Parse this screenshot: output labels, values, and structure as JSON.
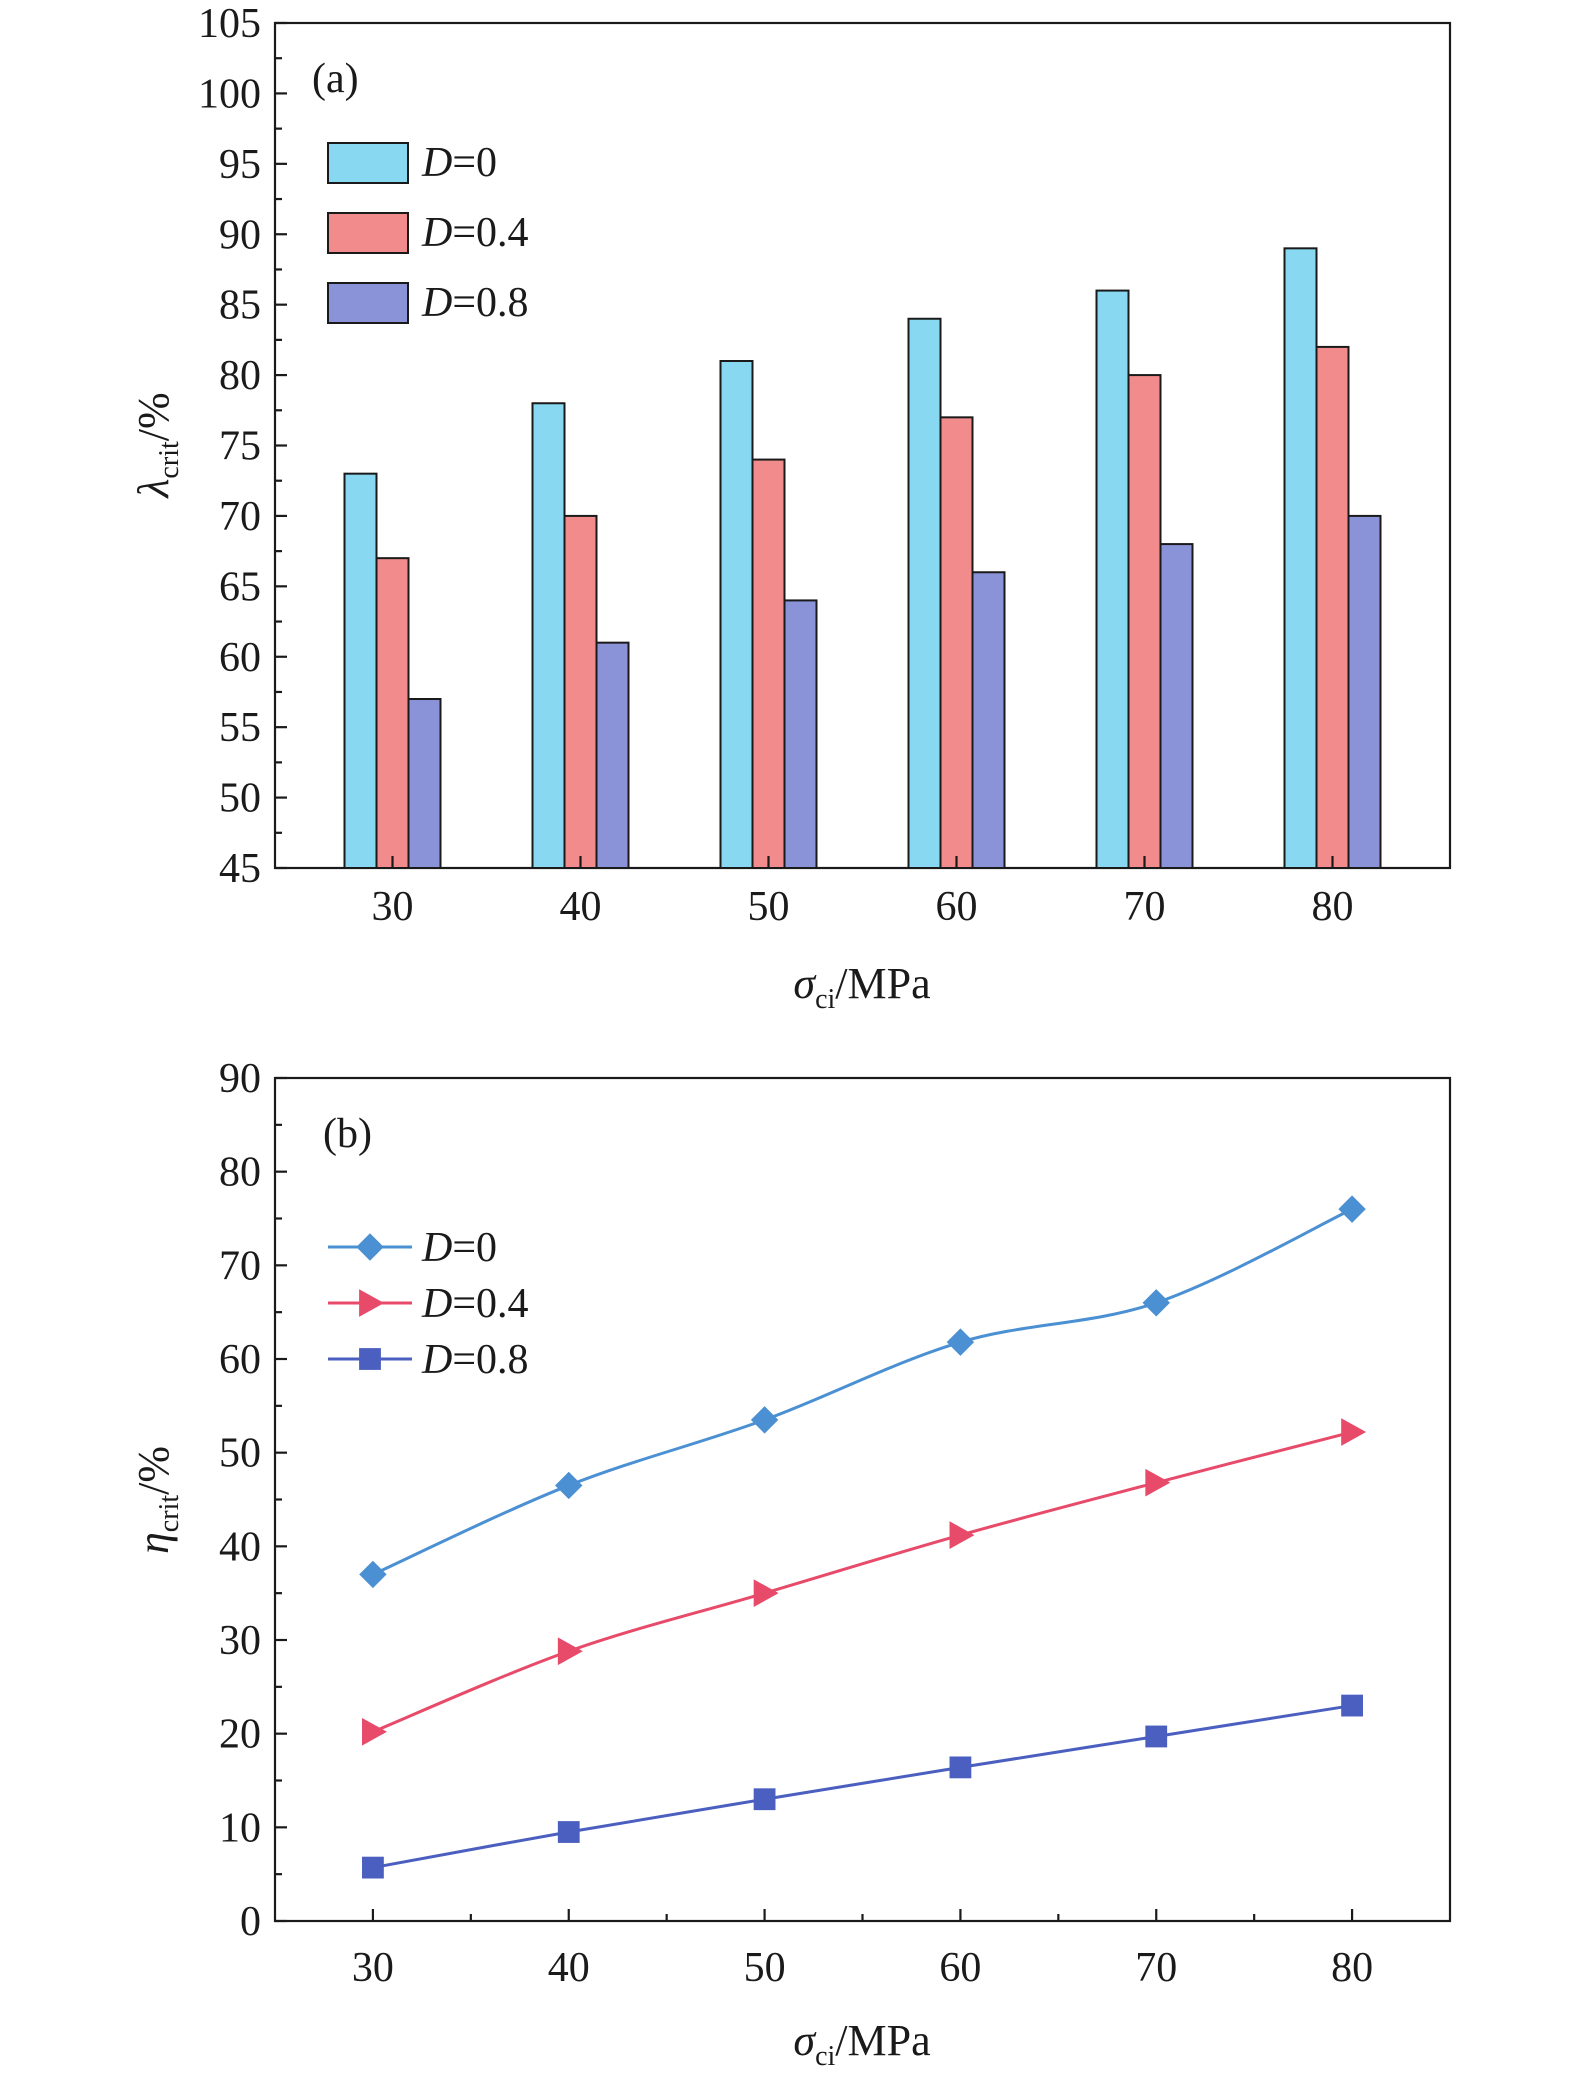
{
  "chart_data": [
    {
      "type": "bar",
      "panel_label": "(a)",
      "categories": [
        "30",
        "40",
        "50",
        "60",
        "70",
        "80"
      ],
      "series": [
        {
          "name_prefix": "D",
          "name_suffix": "=0",
          "values": [
            73,
            78,
            81,
            84,
            86,
            89
          ],
          "color": "#87d8f0"
        },
        {
          "name_prefix": "D",
          "name_suffix": "=0.4",
          "values": [
            67,
            70,
            74,
            77,
            80,
            82
          ],
          "color": "#f28b8b"
        },
        {
          "name_prefix": "D",
          "name_suffix": "=0.8",
          "values": [
            57,
            61,
            64,
            66,
            68,
            70
          ],
          "color": "#8a93d8"
        }
      ],
      "yticks": [
        "45",
        "50",
        "55",
        "60",
        "65",
        "70",
        "75",
        "80",
        "85",
        "90",
        "95",
        "100",
        "105"
      ],
      "ylim": [
        45,
        105
      ],
      "xlabel": {
        "symbol": "σ",
        "sub": "ci",
        "rest": "/MPa"
      },
      "ylabel": {
        "symbol": "λ",
        "sub": "crit",
        "rest": "/%"
      },
      "legend_position": "top-left",
      "grid": false
    },
    {
      "type": "line",
      "panel_label": "(b)",
      "x": [
        30,
        40,
        50,
        60,
        70,
        80
      ],
      "xticks": [
        "30",
        "40",
        "50",
        "60",
        "70",
        "80"
      ],
      "series": [
        {
          "name_prefix": "D",
          "name_suffix": "=0",
          "values": [
            37,
            46.5,
            53.5,
            61.8,
            66,
            76
          ],
          "color": "#4a90d2",
          "marker": "diamond"
        },
        {
          "name_prefix": "D",
          "name_suffix": "=0.4",
          "values": [
            20.2,
            28.8,
            35,
            41.2,
            46.8,
            52.2
          ],
          "color": "#e84a6a",
          "marker": "triangle-right"
        },
        {
          "name_prefix": "D",
          "name_suffix": "=0.8",
          "values": [
            5.7,
            9.5,
            13,
            16.4,
            19.7,
            23
          ],
          "color": "#4a5fbf",
          "marker": "square"
        }
      ],
      "yticks": [
        "0",
        "10",
        "20",
        "30",
        "40",
        "50",
        "60",
        "70",
        "80",
        "90"
      ],
      "ylim": [
        0,
        90
      ],
      "xlim": [
        25,
        85
      ],
      "xlabel": {
        "symbol": "σ",
        "sub": "ci",
        "rest": "/MPa"
      },
      "ylabel": {
        "symbol": "η",
        "sub": "crit",
        "rest": "/%"
      },
      "legend_position": "top-left",
      "grid": false
    }
  ]
}
